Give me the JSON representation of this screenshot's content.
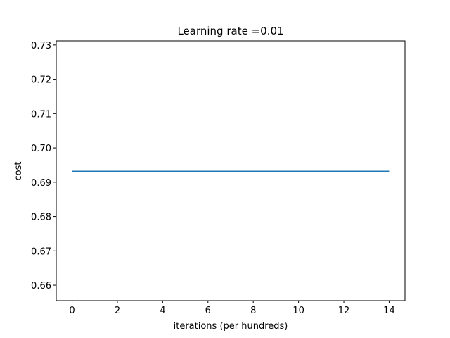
{
  "chart_data": {
    "type": "line",
    "title": "Learning rate =0.01",
    "xlabel": "iterations (per hundreds)",
    "ylabel": "cost",
    "xlim": [
      -0.7,
      14.7
    ],
    "ylim": [
      0.6555,
      0.7312
    ],
    "x_ticks": [
      0,
      2,
      4,
      6,
      8,
      10,
      12,
      14
    ],
    "x_tick_labels": [
      "0",
      "2",
      "4",
      "6",
      "8",
      "10",
      "12",
      "14"
    ],
    "y_ticks": [
      0.66,
      0.67,
      0.68,
      0.69,
      0.7,
      0.71,
      0.72,
      0.73
    ],
    "y_tick_labels": [
      "0.66",
      "0.67",
      "0.68",
      "0.69",
      "0.70",
      "0.71",
      "0.72",
      "0.73"
    ],
    "grid": false,
    "series": [
      {
        "color": "#1f77b4",
        "x": [
          0,
          1,
          2,
          3,
          4,
          5,
          6,
          7,
          8,
          9,
          10,
          11,
          12,
          13,
          14
        ],
        "values": [
          0.6932,
          0.6932,
          0.6932,
          0.6932,
          0.6932,
          0.6932,
          0.6932,
          0.6932,
          0.6932,
          0.6932,
          0.6932,
          0.6932,
          0.6932,
          0.6932,
          0.6932
        ]
      }
    ]
  }
}
